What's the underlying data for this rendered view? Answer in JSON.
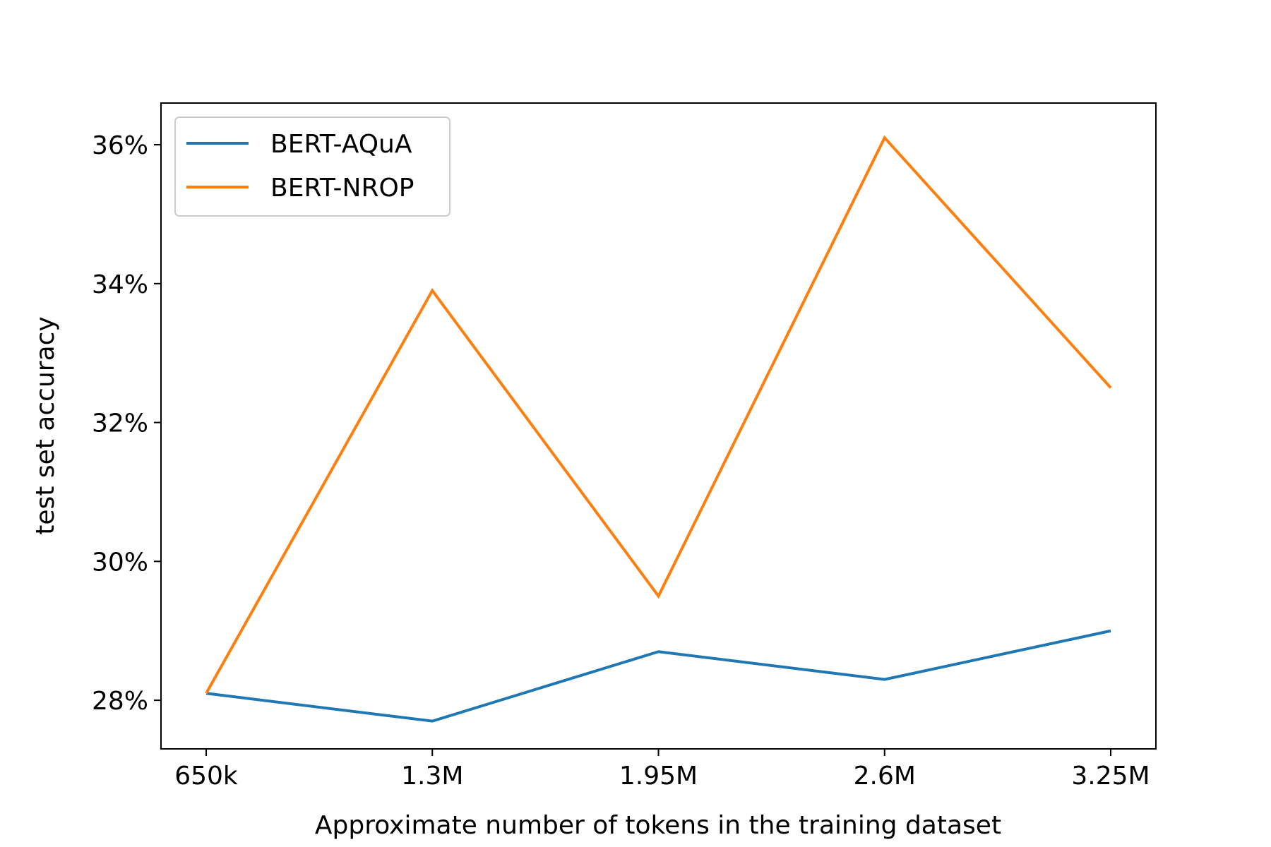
{
  "chart_data": {
    "type": "line",
    "title": "",
    "xlabel": "Approximate number of tokens in the training dataset",
    "ylabel": "test set accuracy",
    "categories": [
      "650k",
      "1.3M",
      "1.95M",
      "2.6M",
      "3.25M"
    ],
    "ylim": [
      27.3,
      36.6
    ],
    "yticks": [
      28,
      30,
      32,
      34,
      36
    ],
    "ytick_labels": [
      "28%",
      "30%",
      "32%",
      "34%",
      "36%"
    ],
    "grid": false,
    "legend_position": "top-left",
    "series": [
      {
        "name": "BERT-AQuA",
        "color": "#1f77b4",
        "values": [
          28.1,
          27.7,
          28.7,
          28.3,
          29.0
        ]
      },
      {
        "name": "BERT-NROP",
        "color": "#ff7f0e",
        "values": [
          28.1,
          33.9,
          29.5,
          36.1,
          32.5
        ]
      }
    ]
  }
}
